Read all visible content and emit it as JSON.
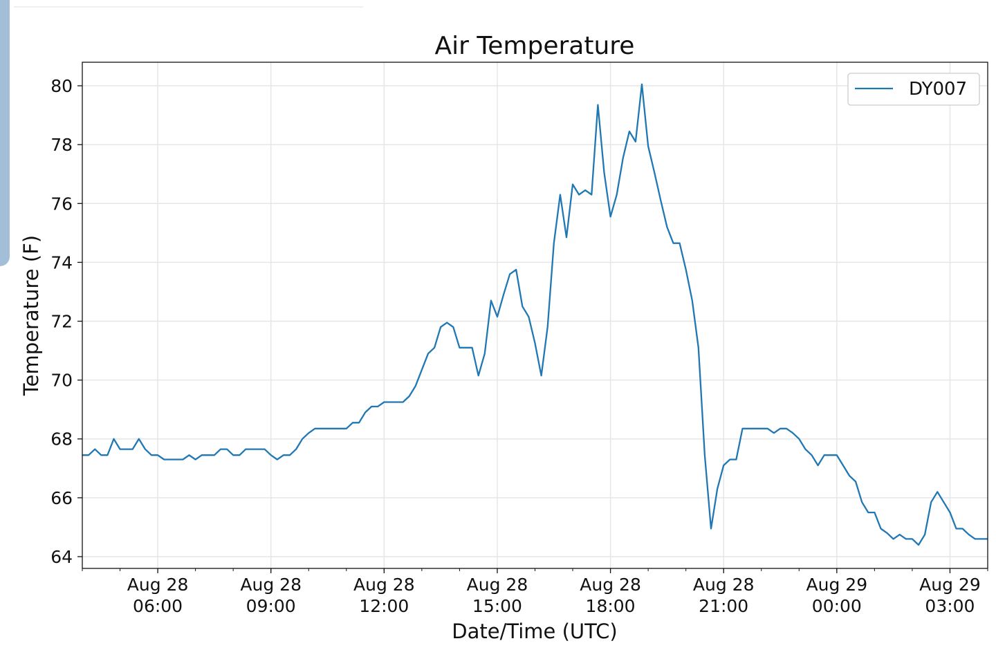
{
  "chart_data": {
    "type": "line",
    "title": "Air Temperature",
    "xlabel": "Date/Time (UTC)",
    "ylabel": "Temperature (F)",
    "ylim": [
      63.6,
      80.8
    ],
    "xlim": [
      "2021-08-28T04:00",
      "2021-08-29T04:00"
    ],
    "grid": true,
    "legend_position": "top-right",
    "x_ticks": [
      {
        "at": "2021-08-28T06:00",
        "label": [
          "Aug 28",
          "06:00"
        ]
      },
      {
        "at": "2021-08-28T09:00",
        "label": [
          "Aug 28",
          "09:00"
        ]
      },
      {
        "at": "2021-08-28T12:00",
        "label": [
          "Aug 28",
          "12:00"
        ]
      },
      {
        "at": "2021-08-28T15:00",
        "label": [
          "Aug 28",
          "15:00"
        ]
      },
      {
        "at": "2021-08-28T18:00",
        "label": [
          "Aug 28",
          "18:00"
        ]
      },
      {
        "at": "2021-08-28T21:00",
        "label": [
          "Aug 28",
          "21:00"
        ]
      },
      {
        "at": "2021-08-29T00:00",
        "label": [
          "Aug 29",
          "00:00"
        ]
      },
      {
        "at": "2021-08-29T03:00",
        "label": [
          "Aug 29",
          "03:00"
        ]
      }
    ],
    "y_ticks": [
      64,
      66,
      68,
      70,
      72,
      74,
      76,
      78,
      80
    ],
    "series": [
      {
        "name": "DY007",
        "color": "#1f77b4",
        "x": [
          "2021-08-28T04:00",
          "2021-08-28T04:10",
          "2021-08-28T04:20",
          "2021-08-28T04:30",
          "2021-08-28T04:40",
          "2021-08-28T04:50",
          "2021-08-28T05:00",
          "2021-08-28T05:10",
          "2021-08-28T05:20",
          "2021-08-28T05:30",
          "2021-08-28T05:40",
          "2021-08-28T05:50",
          "2021-08-28T06:00",
          "2021-08-28T06:10",
          "2021-08-28T06:20",
          "2021-08-28T06:30",
          "2021-08-28T06:40",
          "2021-08-28T06:50",
          "2021-08-28T07:00",
          "2021-08-28T07:10",
          "2021-08-28T07:20",
          "2021-08-28T07:30",
          "2021-08-28T07:40",
          "2021-08-28T07:50",
          "2021-08-28T08:00",
          "2021-08-28T08:10",
          "2021-08-28T08:20",
          "2021-08-28T08:30",
          "2021-08-28T08:40",
          "2021-08-28T08:50",
          "2021-08-28T09:00",
          "2021-08-28T09:10",
          "2021-08-28T09:20",
          "2021-08-28T09:30",
          "2021-08-28T09:40",
          "2021-08-28T09:50",
          "2021-08-28T10:00",
          "2021-08-28T10:10",
          "2021-08-28T10:20",
          "2021-08-28T10:30",
          "2021-08-28T10:40",
          "2021-08-28T10:50",
          "2021-08-28T11:00",
          "2021-08-28T11:10",
          "2021-08-28T11:20",
          "2021-08-28T11:30",
          "2021-08-28T11:40",
          "2021-08-28T11:50",
          "2021-08-28T12:00",
          "2021-08-28T12:10",
          "2021-08-28T12:20",
          "2021-08-28T12:30",
          "2021-08-28T12:40",
          "2021-08-28T12:50",
          "2021-08-28T13:00",
          "2021-08-28T13:10",
          "2021-08-28T13:20",
          "2021-08-28T13:30",
          "2021-08-28T13:40",
          "2021-08-28T13:50",
          "2021-08-28T14:00",
          "2021-08-28T14:10",
          "2021-08-28T14:20",
          "2021-08-28T14:30",
          "2021-08-28T14:40",
          "2021-08-28T14:50",
          "2021-08-28T15:00",
          "2021-08-28T15:10",
          "2021-08-28T15:20",
          "2021-08-28T15:30",
          "2021-08-28T15:40",
          "2021-08-28T15:50",
          "2021-08-28T16:00",
          "2021-08-28T16:10",
          "2021-08-28T16:20",
          "2021-08-28T16:30",
          "2021-08-28T16:40",
          "2021-08-28T16:50",
          "2021-08-28T17:00",
          "2021-08-28T17:10",
          "2021-08-28T17:20",
          "2021-08-28T17:30",
          "2021-08-28T17:40",
          "2021-08-28T17:50",
          "2021-08-28T18:00",
          "2021-08-28T18:10",
          "2021-08-28T18:20",
          "2021-08-28T18:30",
          "2021-08-28T18:40",
          "2021-08-28T18:50",
          "2021-08-28T19:00",
          "2021-08-28T19:10",
          "2021-08-28T19:20",
          "2021-08-28T19:30",
          "2021-08-28T19:40",
          "2021-08-28T19:50",
          "2021-08-28T20:00",
          "2021-08-28T20:10",
          "2021-08-28T20:20",
          "2021-08-28T20:30",
          "2021-08-28T20:40",
          "2021-08-28T20:50",
          "2021-08-28T21:00",
          "2021-08-28T21:10",
          "2021-08-28T21:20",
          "2021-08-28T21:30",
          "2021-08-28T21:40",
          "2021-08-28T21:50",
          "2021-08-28T22:00",
          "2021-08-28T22:10",
          "2021-08-28T22:20",
          "2021-08-28T22:30",
          "2021-08-28T22:40",
          "2021-08-28T22:50",
          "2021-08-28T23:00",
          "2021-08-28T23:10",
          "2021-08-28T23:20",
          "2021-08-28T23:30",
          "2021-08-28T23:40",
          "2021-08-28T23:50",
          "2021-08-29T00:00",
          "2021-08-29T00:10",
          "2021-08-29T00:20",
          "2021-08-29T00:30",
          "2021-08-29T00:40",
          "2021-08-29T00:50",
          "2021-08-29T01:00",
          "2021-08-29T01:10",
          "2021-08-29T01:20",
          "2021-08-29T01:30",
          "2021-08-29T01:40",
          "2021-08-29T01:50",
          "2021-08-29T02:00",
          "2021-08-29T02:10",
          "2021-08-29T02:20",
          "2021-08-29T02:30",
          "2021-08-29T02:40",
          "2021-08-29T02:50",
          "2021-08-29T03:00",
          "2021-08-29T03:10",
          "2021-08-29T03:20",
          "2021-08-29T03:30",
          "2021-08-29T03:40",
          "2021-08-29T03:50",
          "2021-08-29T04:00"
        ],
        "values": [
          67.45,
          67.45,
          67.65,
          67.45,
          67.45,
          68.0,
          67.65,
          67.65,
          67.65,
          68.0,
          67.65,
          67.45,
          67.45,
          67.3,
          67.3,
          67.3,
          67.3,
          67.45,
          67.3,
          67.45,
          67.45,
          67.45,
          67.65,
          67.65,
          67.45,
          67.45,
          67.65,
          67.65,
          67.65,
          67.65,
          67.45,
          67.3,
          67.45,
          67.45,
          67.65,
          68.0,
          68.2,
          68.35,
          68.35,
          68.35,
          68.35,
          68.35,
          68.35,
          68.55,
          68.55,
          68.9,
          69.1,
          69.1,
          69.25,
          69.25,
          69.25,
          69.25,
          69.45,
          69.8,
          70.35,
          70.9,
          71.1,
          71.8,
          71.95,
          71.8,
          71.1,
          71.1,
          71.1,
          70.15,
          70.9,
          72.7,
          72.15,
          72.9,
          73.6,
          73.75,
          72.5,
          72.15,
          71.25,
          70.15,
          71.8,
          74.65,
          76.3,
          74.85,
          76.65,
          76.3,
          76.45,
          76.3,
          79.35,
          77.05,
          75.55,
          76.3,
          77.55,
          78.45,
          78.1,
          80.05,
          77.95,
          77.05,
          76.1,
          75.2,
          74.65,
          74.65,
          73.75,
          72.7,
          71.1,
          67.45,
          64.95,
          66.3,
          67.1,
          67.3,
          67.3,
          68.35,
          68.35,
          68.35,
          68.35,
          68.35,
          68.2,
          68.35,
          68.35,
          68.2,
          68.0,
          67.65,
          67.45,
          67.1,
          67.45,
          67.45,
          67.45,
          67.1,
          66.75,
          66.55,
          65.85,
          65.5,
          65.5,
          64.95,
          64.8,
          64.6,
          64.75,
          64.6,
          64.6,
          64.4,
          64.75,
          65.85,
          66.2,
          65.85,
          65.5,
          64.95,
          64.95,
          64.75,
          64.6,
          64.6,
          64.6
        ]
      }
    ]
  }
}
